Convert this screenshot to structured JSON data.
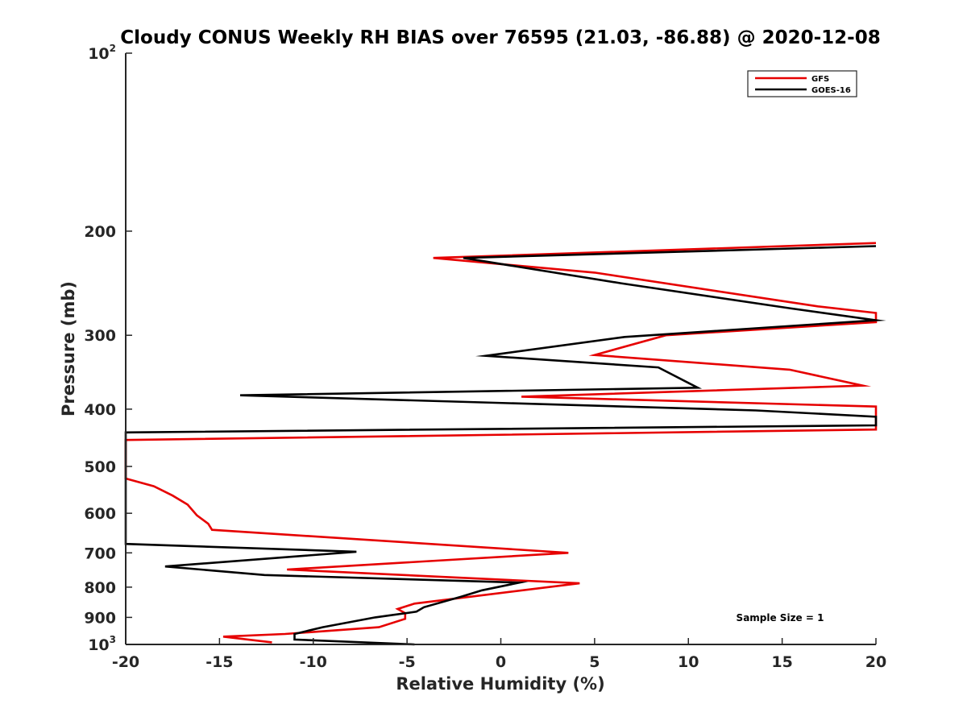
{
  "chart_data": {
    "type": "line",
    "title": "Cloudy CONUS Weekly RH BIAS over 76595 (21.03, -86.88) @ 2020-12-08",
    "xlabel": "Relative Humidity (%)",
    "ylabel": "Pressure (mb)",
    "xlim": [
      -20,
      20
    ],
    "ylim": [
      100,
      1000
    ],
    "yscale": "log",
    "yreversed": true,
    "grid": false,
    "legend_position": "top-right",
    "x_ticks": [
      {
        "value": -20,
        "label": "-20"
      },
      {
        "value": -15,
        "label": "-15"
      },
      {
        "value": -10,
        "label": "-10"
      },
      {
        "value": -5,
        "label": "-5"
      },
      {
        "value": 0,
        "label": "0"
      },
      {
        "value": 5,
        "label": "5"
      },
      {
        "value": 10,
        "label": "10"
      },
      {
        "value": 15,
        "label": "15"
      },
      {
        "value": 20,
        "label": "20"
      }
    ],
    "y_ticks": [
      {
        "value": 100,
        "base": "10",
        "exp": "2"
      },
      {
        "value": 200,
        "label": "200"
      },
      {
        "value": 300,
        "label": "300"
      },
      {
        "value": 400,
        "label": "400"
      },
      {
        "value": 500,
        "label": "500"
      },
      {
        "value": 600,
        "label": "600"
      },
      {
        "value": 700,
        "label": "700"
      },
      {
        "value": 800,
        "label": "800"
      },
      {
        "value": 900,
        "label": "900"
      },
      {
        "value": 1000,
        "base": "10",
        "exp": "3"
      }
    ],
    "series": [
      {
        "name": "GFS",
        "color": "#e60000",
        "points": [
          [
            20,
            209.5
          ],
          [
            -3.6,
            222
          ],
          [
            5,
            235
          ],
          [
            16.9,
            268
          ],
          [
            20,
            275
          ],
          [
            20,
            285
          ],
          [
            8.8,
            300
          ],
          [
            5,
            324
          ],
          [
            15.4,
            343
          ],
          [
            19.3,
            365
          ],
          [
            1.1,
            381
          ],
          [
            20,
            396
          ],
          [
            20,
            433
          ],
          [
            -20,
            451
          ],
          [
            -20,
            524
          ],
          [
            -18.5,
            540
          ],
          [
            -17.5,
            560
          ],
          [
            -16.7,
            580
          ],
          [
            -16.2,
            605
          ],
          [
            -15.6,
            625
          ],
          [
            -15.4,
            640
          ],
          [
            3.6,
            700
          ],
          [
            -11.4,
            747
          ],
          [
            4.2,
            788
          ],
          [
            -4.6,
            853
          ],
          [
            -5.5,
            871
          ],
          [
            -5.1,
            885
          ],
          [
            -5.1,
            905
          ],
          [
            -6.5,
            935
          ],
          [
            -11.5,
            960
          ],
          [
            -14.8,
            970
          ],
          [
            -12.2,
            992
          ]
        ]
      },
      {
        "name": "GOES-16",
        "color": "#000000",
        "points": [
          [
            20,
            212
          ],
          [
            -2,
            222
          ],
          [
            6.4,
            245
          ],
          [
            15.4,
            270
          ],
          [
            20,
            283
          ],
          [
            6.6,
            302
          ],
          [
            -0.8,
            325
          ],
          [
            8.4,
            340
          ],
          [
            10.5,
            368
          ],
          [
            -13.9,
            379
          ],
          [
            13.6,
            402
          ],
          [
            20,
            412
          ],
          [
            20,
            426
          ],
          [
            -20,
            438
          ],
          [
            -20,
            676
          ],
          [
            -7.7,
            697
          ],
          [
            -17.9,
            738
          ],
          [
            -12.6,
            763
          ],
          [
            1,
            786
          ],
          [
            -1,
            810
          ],
          [
            -2.1,
            830
          ],
          [
            -4.1,
            865
          ],
          [
            -4.5,
            880
          ],
          [
            -6.7,
            900
          ],
          [
            -9.5,
            935
          ],
          [
            -11,
            960
          ],
          [
            -11,
            981
          ],
          [
            -4.6,
            1000
          ]
        ]
      }
    ],
    "annotations": [
      "Sample Size = 1"
    ]
  }
}
